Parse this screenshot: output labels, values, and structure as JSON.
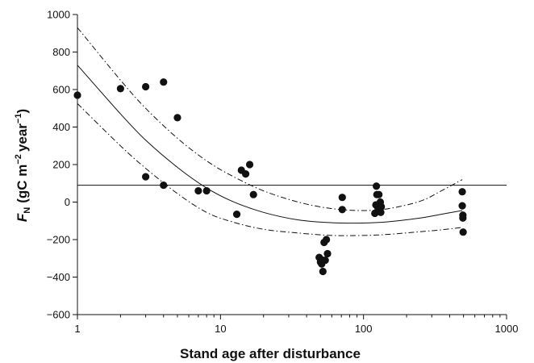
{
  "chart_data": {
    "type": "scatter",
    "title": "",
    "xlabel": "Stand age after disturbance",
    "ylabel": {
      "symbol": "F",
      "symbol_subscript": "N",
      "unit_prefix": "(gC m",
      "unit_exp1": "−2",
      "unit_middle": "year",
      "unit_exp2": "−1",
      "unit_suffix": ")"
    },
    "x_scale": "log",
    "xlim": [
      1,
      1000
    ],
    "ylim": [
      -600,
      1000
    ],
    "x_ticks": [
      1,
      10,
      100,
      1000
    ],
    "x_tick_labels": [
      "1",
      "10",
      "100",
      "1000"
    ],
    "y_ticks": [
      -600,
      -400,
      -200,
      0,
      200,
      400,
      600,
      800,
      1000
    ],
    "y_tick_labels": [
      "−600",
      "−400",
      "−200",
      "0",
      "200",
      "400",
      "600",
      "800",
      "1000"
    ],
    "grid": false,
    "legend": "none",
    "points": [
      [
        1,
        570
      ],
      [
        2,
        605
      ],
      [
        3,
        615
      ],
      [
        3,
        135
      ],
      [
        4,
        640
      ],
      [
        4,
        90
      ],
      [
        5,
        450
      ],
      [
        7,
        60
      ],
      [
        8,
        60
      ],
      [
        13,
        -65
      ],
      [
        14,
        170
      ],
      [
        15,
        150
      ],
      [
        16,
        200
      ],
      [
        17,
        40
      ],
      [
        49,
        -295
      ],
      [
        50,
        -320
      ],
      [
        51,
        -330
      ],
      [
        52,
        -370
      ],
      [
        52,
        -310
      ],
      [
        53,
        -215
      ],
      [
        54,
        -310
      ],
      [
        55,
        -200
      ],
      [
        56,
        -275
      ],
      [
        71,
        25
      ],
      [
        71,
        -40
      ],
      [
        120,
        -60
      ],
      [
        122,
        -15
      ],
      [
        123,
        85
      ],
      [
        124,
        40
      ],
      [
        126,
        -30
      ],
      [
        128,
        40
      ],
      [
        130,
        -20
      ],
      [
        131,
        0
      ],
      [
        132,
        -55
      ],
      [
        133,
        -25
      ],
      [
        490,
        55
      ],
      [
        490,
        -20
      ],
      [
        495,
        -70
      ],
      [
        495,
        -85
      ],
      [
        497,
        -160
      ]
    ],
    "reference_line_y": 90,
    "fit_curve": [
      [
        1,
        730
      ],
      [
        2,
        470
      ],
      [
        3,
        330
      ],
      [
        5,
        185
      ],
      [
        8,
        75
      ],
      [
        12,
        5
      ],
      [
        20,
        -55
      ],
      [
        35,
        -95
      ],
      [
        60,
        -110
      ],
      [
        100,
        -112
      ],
      [
        150,
        -105
      ],
      [
        250,
        -85
      ],
      [
        350,
        -65
      ],
      [
        490,
        -45
      ]
    ],
    "upper_band": [
      [
        1,
        930
      ],
      [
        2,
        650
      ],
      [
        3,
        500
      ],
      [
        5,
        340
      ],
      [
        8,
        220
      ],
      [
        12,
        140
      ],
      [
        20,
        60
      ],
      [
        35,
        0
      ],
      [
        60,
        -35
      ],
      [
        100,
        -45
      ],
      [
        150,
        -35
      ],
      [
        250,
        5
      ],
      [
        350,
        60
      ],
      [
        490,
        120
      ]
    ],
    "lower_band": [
      [
        1,
        525
      ],
      [
        2,
        300
      ],
      [
        3,
        180
      ],
      [
        5,
        45
      ],
      [
        8,
        -55
      ],
      [
        12,
        -105
      ],
      [
        20,
        -145
      ],
      [
        35,
        -165
      ],
      [
        60,
        -178
      ],
      [
        100,
        -178
      ],
      [
        150,
        -172
      ],
      [
        250,
        -158
      ],
      [
        350,
        -148
      ],
      [
        490,
        -135
      ]
    ],
    "colors": {
      "points": "#111111",
      "lines": "#111111"
    }
  }
}
